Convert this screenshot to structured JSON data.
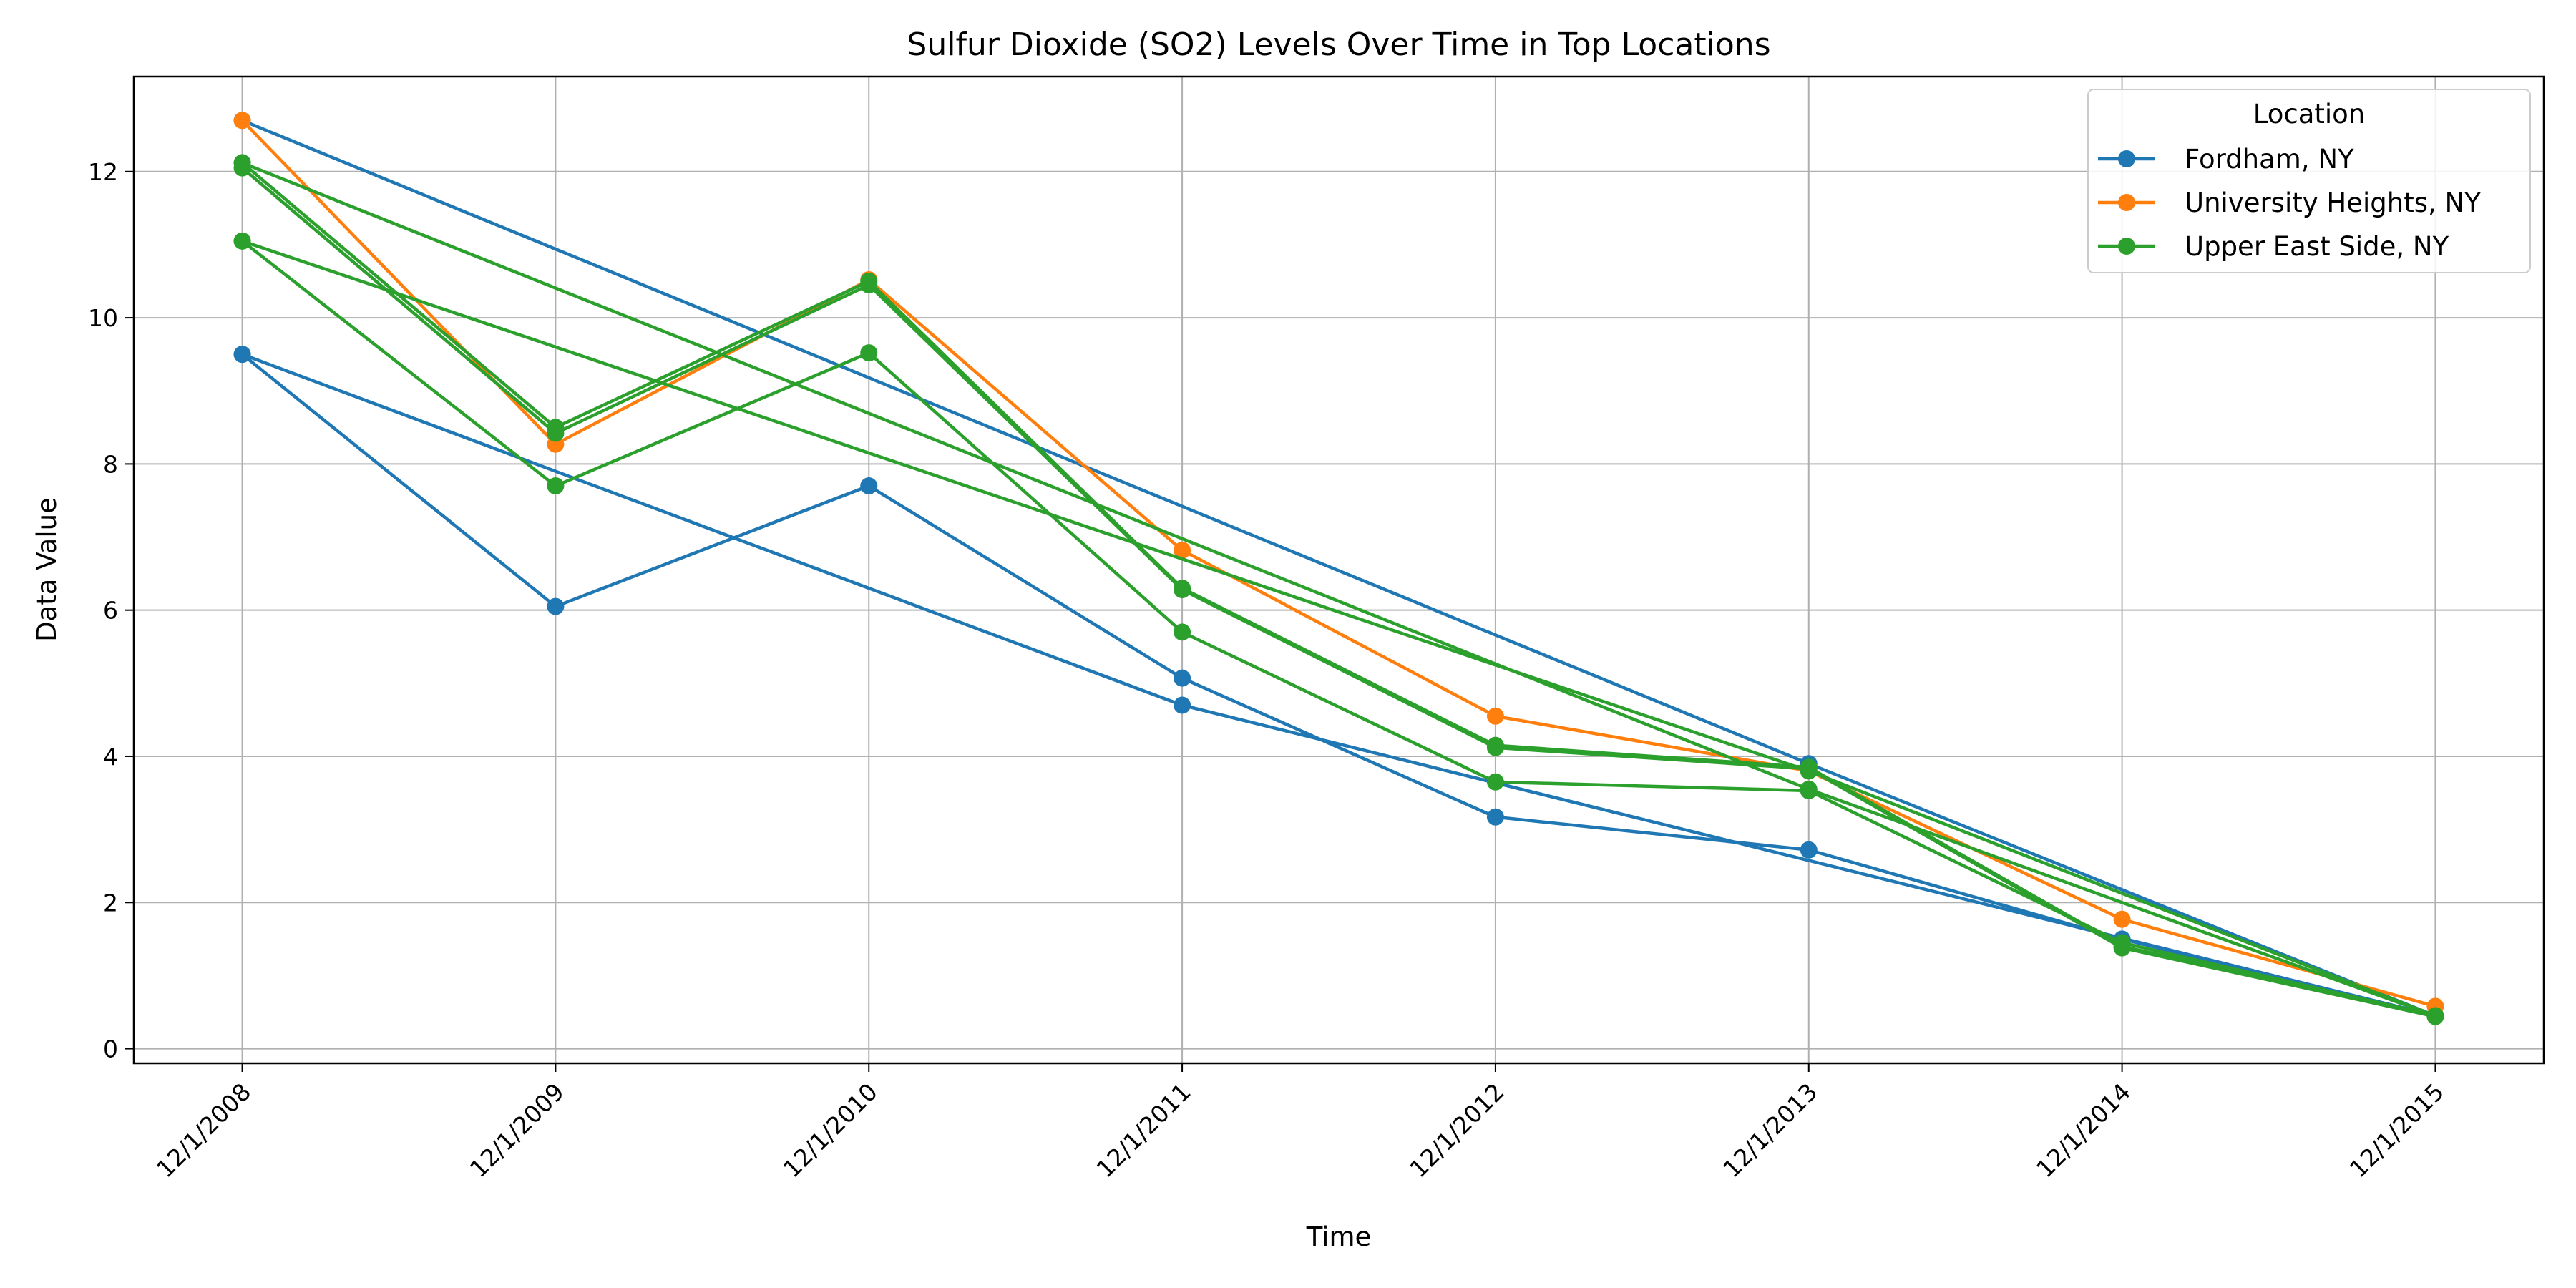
{
  "chart_data": {
    "type": "line",
    "title": "Sulfur Dioxide (SO2) Levels Over Time in Top Locations",
    "xlabel": "Time",
    "ylabel": "Data Value",
    "categories": [
      "12/1/2008",
      "12/1/2009",
      "12/1/2010",
      "12/1/2011",
      "12/1/2012",
      "12/1/2013",
      "12/1/2014",
      "12/1/2015"
    ],
    "ylim": [
      -0.2,
      13.3
    ],
    "yticks": [
      0,
      2,
      4,
      6,
      8,
      10,
      12
    ],
    "grid": true,
    "legend": {
      "title": "Location",
      "placement": "top-right",
      "entries": [
        {
          "label": "Fordham, NY",
          "color": "#1f77b4"
        },
        {
          "label": "University Heights, NY",
          "color": "#ff7f0e"
        },
        {
          "label": "Upper East Side, NY",
          "color": "#2ca02c"
        }
      ]
    },
    "series": [
      {
        "location": "Fordham, NY",
        "color": "#1f77b4",
        "points": [
          [
            "12/1/2008",
            12.7
          ],
          [
            "12/1/2013",
            3.9
          ],
          [
            "12/1/2015",
            0.45
          ]
        ]
      },
      {
        "location": "Fordham, NY",
        "color": "#1f77b4",
        "points": [
          [
            "12/1/2008",
            9.5
          ],
          [
            "12/1/2011",
            4.7
          ],
          [
            "12/1/2015",
            0.45
          ]
        ]
      },
      {
        "location": "Fordham, NY",
        "color": "#1f77b4",
        "points": [
          [
            "12/1/2008",
            9.5
          ],
          [
            "12/1/2009",
            6.05
          ],
          [
            "12/1/2010",
            7.7
          ],
          [
            "12/1/2011",
            5.07
          ],
          [
            "12/1/2012",
            3.17
          ],
          [
            "12/1/2013",
            2.72
          ],
          [
            "12/1/2014",
            1.5
          ],
          [
            "12/1/2015",
            0.45
          ]
        ]
      },
      {
        "location": "University Heights, NY",
        "color": "#ff7f0e",
        "points": [
          [
            "12/1/2008",
            12.7
          ],
          [
            "12/1/2009",
            8.27
          ],
          [
            "12/1/2010",
            10.52
          ],
          [
            "12/1/2011",
            6.82
          ],
          [
            "12/1/2012",
            4.55
          ],
          [
            "12/1/2013",
            3.8
          ],
          [
            "12/1/2014",
            1.77
          ],
          [
            "12/1/2015",
            0.58
          ]
        ]
      },
      {
        "location": "Upper East Side, NY",
        "color": "#2ca02c",
        "points": [
          [
            "12/1/2008",
            12.12
          ],
          [
            "12/1/2009",
            8.5
          ],
          [
            "12/1/2010",
            10.5
          ],
          [
            "12/1/2011",
            6.3
          ],
          [
            "12/1/2012",
            4.15
          ],
          [
            "12/1/2013",
            3.85
          ],
          [
            "12/1/2014",
            1.4
          ],
          [
            "12/1/2015",
            0.45
          ]
        ]
      },
      {
        "location": "Upper East Side, NY",
        "color": "#2ca02c",
        "points": [
          [
            "12/1/2008",
            12.05
          ],
          [
            "12/1/2009",
            8.42
          ],
          [
            "12/1/2010",
            10.45
          ],
          [
            "12/1/2011",
            6.28
          ],
          [
            "12/1/2012",
            4.12
          ],
          [
            "12/1/2013",
            3.83
          ],
          [
            "12/1/2014",
            1.38
          ],
          [
            "12/1/2015",
            0.44
          ]
        ]
      },
      {
        "location": "Upper East Side, NY",
        "color": "#2ca02c",
        "points": [
          [
            "12/1/2008",
            11.05
          ],
          [
            "12/1/2009",
            7.7
          ],
          [
            "12/1/2010",
            9.52
          ],
          [
            "12/1/2011",
            5.7
          ],
          [
            "12/1/2012",
            3.65
          ],
          [
            "12/1/2013",
            3.53
          ],
          [
            "12/1/2014",
            1.45
          ],
          [
            "12/1/2015",
            0.45
          ]
        ]
      },
      {
        "location": "Upper East Side, NY",
        "color": "#2ca02c",
        "points": [
          [
            "12/1/2008",
            12.12
          ],
          [
            "12/1/2013",
            3.55
          ],
          [
            "12/1/2015",
            0.45
          ]
        ]
      },
      {
        "location": "Upper East Side, NY",
        "color": "#2ca02c",
        "points": [
          [
            "12/1/2008",
            11.05
          ],
          [
            "12/1/2013",
            3.8
          ],
          [
            "12/1/2015",
            0.45
          ]
        ]
      }
    ]
  }
}
